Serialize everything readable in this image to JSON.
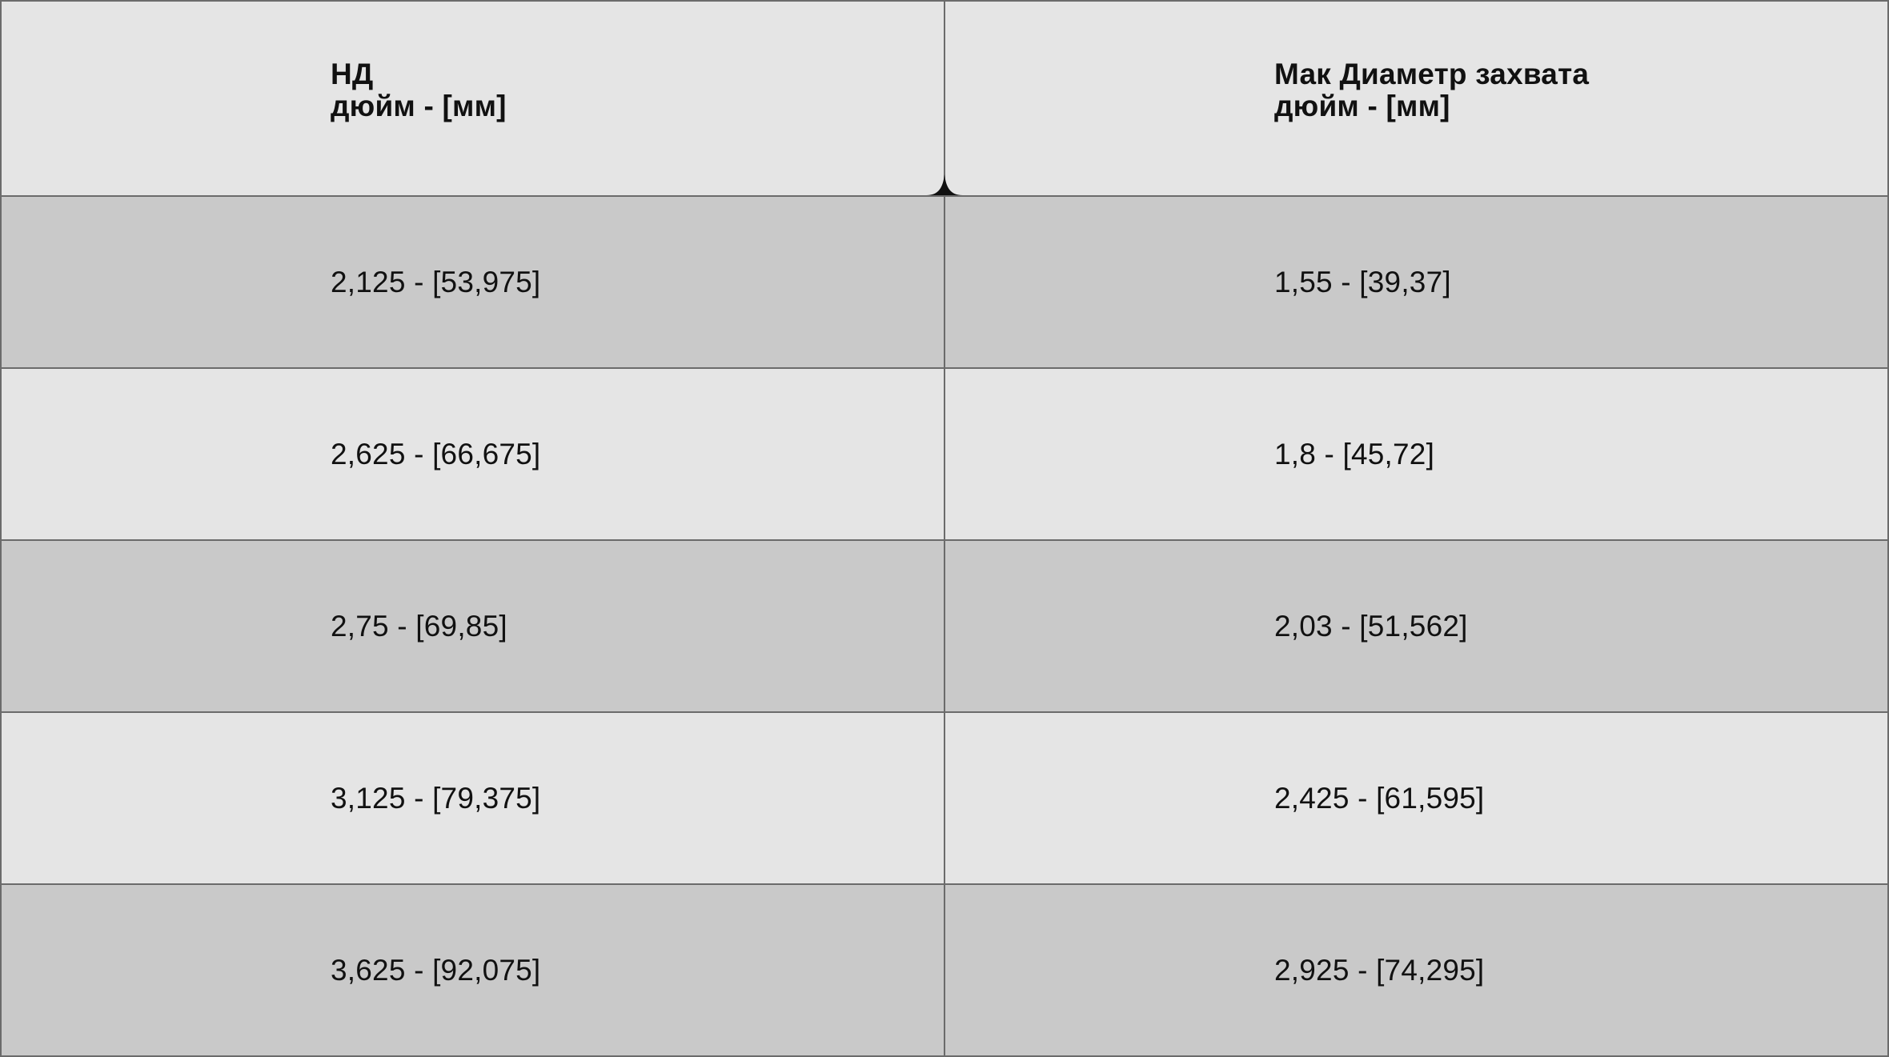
{
  "table": {
    "headers": [
      {
        "line1": "НД",
        "line2": "дюйм - [мм]"
      },
      {
        "line1": "Мак Диаметр захвата",
        "line2": "дюйм - [мм]"
      }
    ],
    "rows": [
      [
        "2,125 - [53,975]",
        "1,55 - [39,37]"
      ],
      [
        "2,625 - [66,675]",
        "1,8 - [45,72]"
      ],
      [
        "2,75 - [69,85]",
        "2,03 - [51,562]"
      ],
      [
        "3,125 - [79,375]",
        "2,425 - [61,595]"
      ],
      [
        "3,625 - [92,075]",
        "2,925 - [74,295]"
      ]
    ]
  },
  "colors": {
    "light_row": "#e5e5e5",
    "dark_row": "#c9c9c9",
    "border": "#6b6b6b",
    "text": "#111111"
  }
}
